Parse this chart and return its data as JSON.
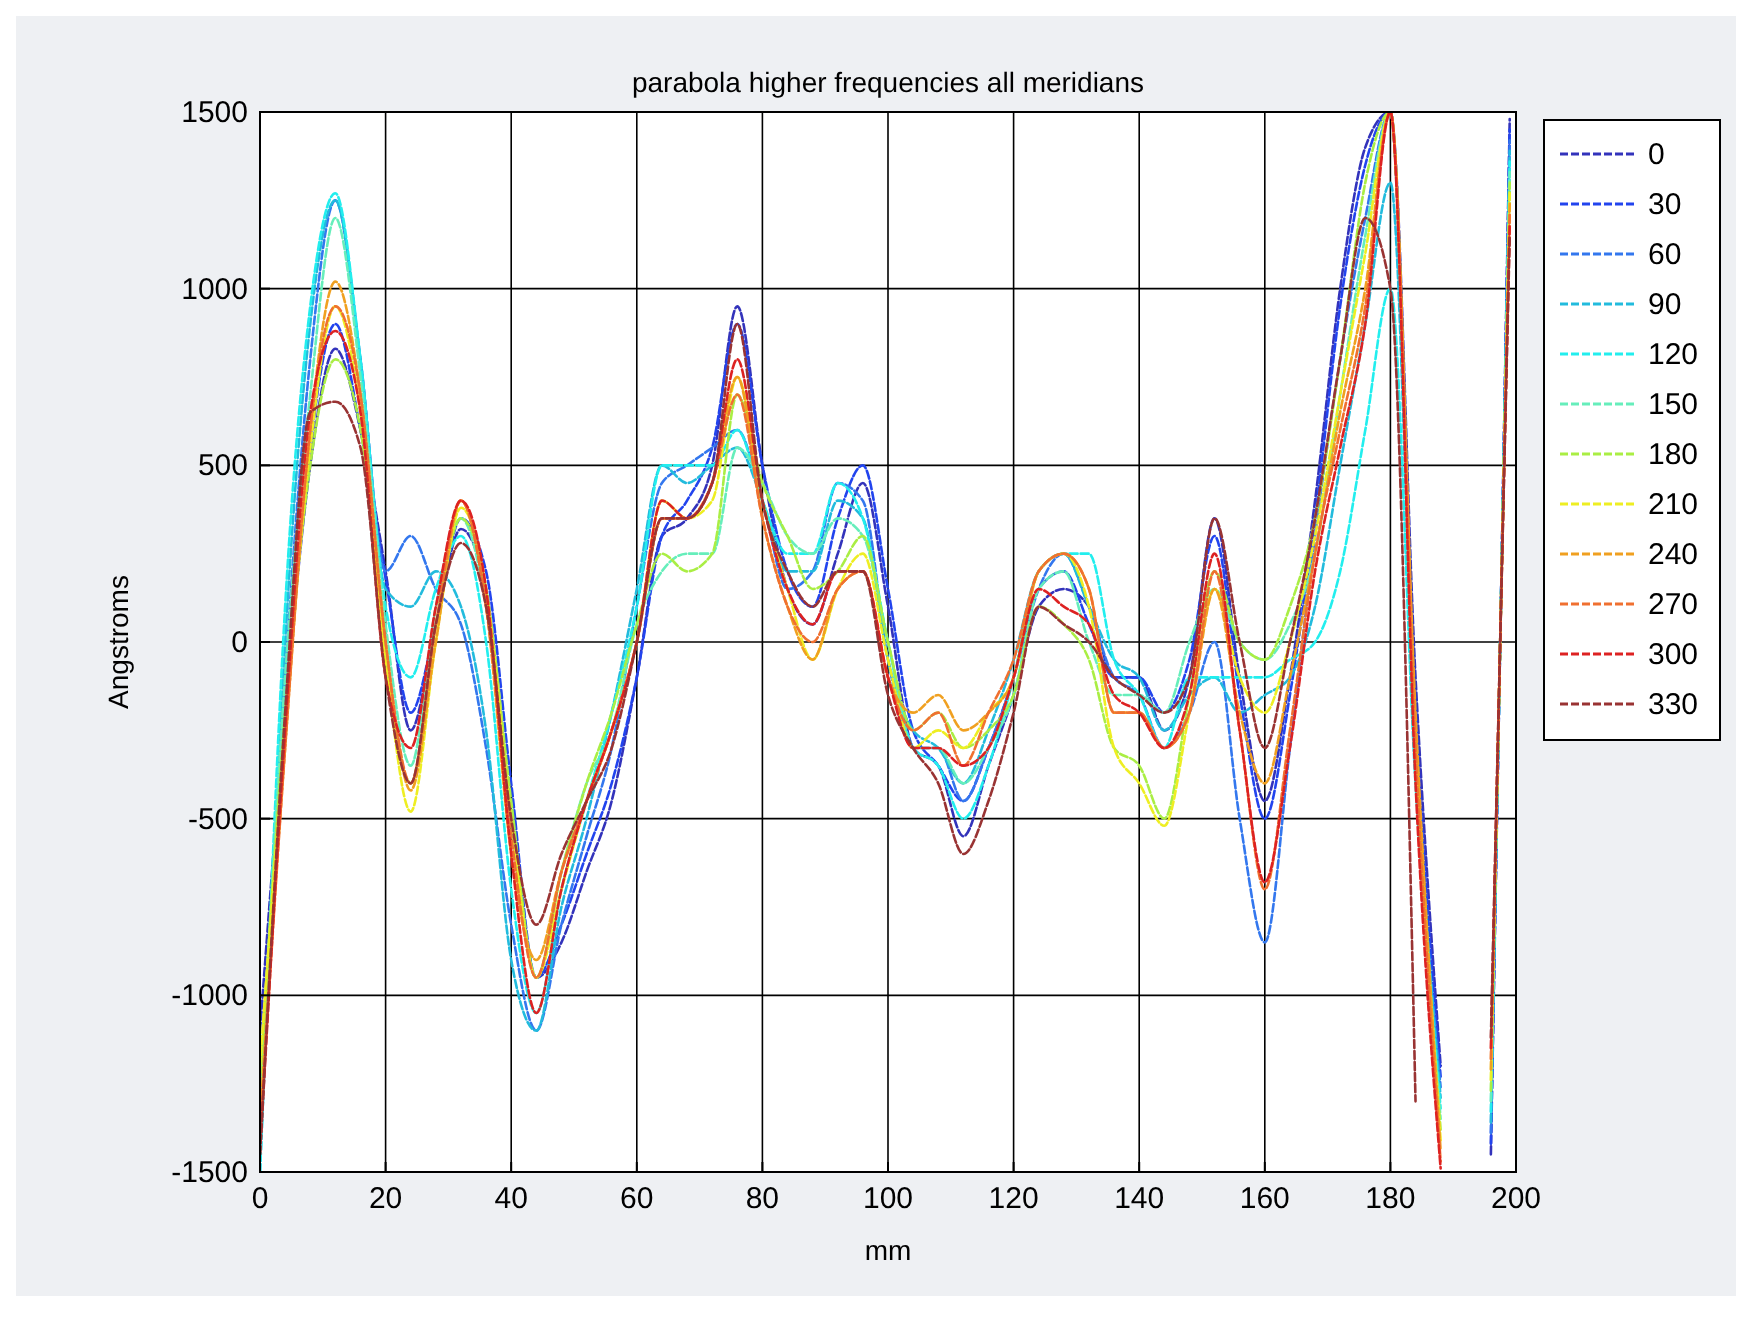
{
  "chart_data": {
    "type": "line",
    "title": "parabola higher frequencies all meridians",
    "xlabel": "mm",
    "ylabel": "Angstroms",
    "x": [
      0,
      4,
      8,
      12,
      16,
      20,
      24,
      28,
      32,
      36,
      40,
      44,
      48,
      52,
      56,
      60,
      64,
      68,
      72,
      76,
      80,
      84,
      88,
      92,
      96,
      100,
      104,
      108,
      112,
      116,
      120,
      124,
      128,
      132,
      136,
      140,
      144,
      148,
      152,
      156,
      160,
      164,
      168,
      172,
      176,
      180,
      184,
      188,
      192,
      196,
      199
    ],
    "xlim": [
      0,
      200
    ],
    "ylim": [
      -1500,
      1500
    ],
    "xticks": [
      0,
      20,
      40,
      60,
      80,
      100,
      120,
      140,
      160,
      180,
      200
    ],
    "yticks": [
      -1500,
      -1000,
      -500,
      0,
      500,
      1000,
      1500
    ],
    "grid": true,
    "legend": "right",
    "line_style": "dashed",
    "marker": "none",
    "series": [
      {
        "name": "0",
        "color": "#3333bb",
        "values": [
          -1100,
          -200,
          500,
          830,
          600,
          200,
          -250,
          50,
          320,
          150,
          -500,
          -950,
          -850,
          -650,
          -450,
          -100,
          300,
          350,
          500,
          950,
          500,
          150,
          50,
          250,
          450,
          100,
          -300,
          -350,
          -550,
          -350,
          -150,
          100,
          150,
          100,
          -100,
          -100,
          -250,
          -100,
          350,
          -100,
          -450,
          -100,
          400,
          1000,
          1400,
          1500,
          -100,
          -1200,
          null,
          -1450,
          1480
        ]
      },
      {
        "name": "30",
        "color": "#2244ee",
        "values": [
          -1230,
          -250,
          550,
          900,
          600,
          180,
          -200,
          50,
          350,
          200,
          -400,
          -950,
          -800,
          -600,
          -400,
          -100,
          300,
          400,
          550,
          900,
          500,
          200,
          100,
          350,
          500,
          150,
          -250,
          -350,
          -450,
          -300,
          -100,
          150,
          200,
          50,
          -100,
          -100,
          -200,
          -50,
          300,
          -150,
          -500,
          -150,
          350,
          950,
          1350,
          1500,
          -200,
          -1230,
          null,
          -1420,
          1450
        ]
      },
      {
        "name": "60",
        "color": "#3377ee",
        "values": [
          -1400,
          -100,
          800,
          1250,
          800,
          200,
          300,
          150,
          50,
          -300,
          -800,
          -1100,
          -800,
          -550,
          -300,
          100,
          450,
          500,
          550,
          600,
          400,
          150,
          200,
          450,
          400,
          -50,
          -300,
          -300,
          -450,
          -300,
          -100,
          150,
          250,
          100,
          -100,
          -150,
          -300,
          -200,
          0,
          -500,
          -850,
          -300,
          300,
          800,
          1200,
          1500,
          -300,
          -1260,
          null,
          -1390,
          1420
        ]
      },
      {
        "name": "90",
        "color": "#22bbdd",
        "values": [
          -1500,
          0,
          900,
          1250,
          800,
          150,
          100,
          200,
          100,
          -250,
          -900,
          -1100,
          -750,
          -500,
          -200,
          150,
          500,
          450,
          500,
          550,
          400,
          200,
          200,
          400,
          350,
          -50,
          -250,
          -300,
          -400,
          -250,
          -50,
          200,
          250,
          100,
          -50,
          -100,
          -250,
          -150,
          -100,
          -200,
          -150,
          -100,
          100,
          500,
          900,
          1300,
          -300,
          -1290,
          null,
          -1360,
          1390
        ]
      },
      {
        "name": "120",
        "color": "#22eeee",
        "values": [
          -1500,
          100,
          950,
          1270,
          800,
          100,
          -100,
          150,
          300,
          0,
          -700,
          -1050,
          -700,
          -450,
          -200,
          100,
          500,
          500,
          500,
          600,
          400,
          250,
          250,
          450,
          350,
          0,
          -300,
          -350,
          -500,
          -350,
          -100,
          200,
          250,
          250,
          -50,
          -150,
          -300,
          -100,
          -100,
          -100,
          -100,
          -50,
          0,
          200,
          600,
          1000,
          -400,
          -1320,
          null,
          -1330,
          1360
        ]
      },
      {
        "name": "150",
        "color": "#66eebb",
        "values": [
          -1300,
          -100,
          700,
          1200,
          750,
          50,
          -350,
          100,
          350,
          100,
          -500,
          -950,
          -650,
          -400,
          -250,
          50,
          200,
          250,
          250,
          550,
          450,
          300,
          250,
          350,
          300,
          0,
          -300,
          -300,
          -400,
          -300,
          -150,
          150,
          200,
          0,
          -150,
          -150,
          -200,
          0,
          150,
          0,
          -50,
          50,
          250,
          700,
          1150,
          1500,
          -300,
          -1350,
          null,
          -1300,
          1330
        ]
      },
      {
        "name": "180",
        "color": "#aaee44",
        "values": [
          -1250,
          -200,
          500,
          800,
          600,
          -50,
          -400,
          50,
          350,
          150,
          -450,
          -950,
          -650,
          -400,
          -200,
          50,
          250,
          200,
          250,
          700,
          450,
          300,
          150,
          200,
          300,
          0,
          -250,
          -200,
          -300,
          -250,
          -150,
          100,
          50,
          -50,
          -300,
          -350,
          -500,
          -150,
          200,
          0,
          -50,
          100,
          350,
          800,
          1300,
          1500,
          -300,
          -1380,
          null,
          -1270,
          1300
        ]
      },
      {
        "name": "210",
        "color": "#eeee22",
        "values": [
          -1200,
          -250,
          550,
          950,
          650,
          -50,
          -480,
          0,
          380,
          150,
          -500,
          -950,
          -700,
          -450,
          -250,
          0,
          400,
          350,
          400,
          750,
          400,
          150,
          -50,
          150,
          250,
          -50,
          -300,
          -250,
          -300,
          -200,
          -100,
          200,
          250,
          100,
          -300,
          -400,
          -520,
          -200,
          150,
          -100,
          -200,
          0,
          300,
          700,
          1100,
          1500,
          -250,
          -1410,
          null,
          -1240,
          1270
        ]
      },
      {
        "name": "240",
        "color": "#f0a020",
        "values": [
          -1350,
          -300,
          600,
          1020,
          700,
          0,
          -420,
          0,
          400,
          100,
          -600,
          -900,
          -650,
          -450,
          -250,
          0,
          350,
          350,
          450,
          750,
          350,
          100,
          -50,
          150,
          200,
          -100,
          -200,
          -150,
          -250,
          -200,
          -100,
          200,
          250,
          150,
          -200,
          -200,
          -300,
          -200,
          150,
          -200,
          -400,
          -100,
          250,
          650,
          1000,
          1500,
          -200,
          -1440,
          null,
          -1210,
          1240
        ]
      },
      {
        "name": "270",
        "color": "#f07030",
        "values": [
          -1400,
          -300,
          600,
          950,
          700,
          0,
          -400,
          50,
          400,
          100,
          -550,
          -950,
          -650,
          -450,
          -250,
          0,
          350,
          350,
          450,
          700,
          350,
          100,
          0,
          150,
          200,
          -100,
          -250,
          -200,
          -350,
          -200,
          -50,
          200,
          250,
          150,
          -200,
          -200,
          -300,
          -200,
          200,
          -250,
          -700,
          -250,
          250,
          600,
          950,
          1500,
          -300,
          -1470,
          null,
          -1180,
          1210
        ]
      },
      {
        "name": "300",
        "color": "#dd2222",
        "values": [
          -1450,
          -250,
          650,
          880,
          650,
          -100,
          -300,
          100,
          400,
          150,
          -600,
          -1050,
          -700,
          -450,
          -250,
          0,
          400,
          350,
          450,
          800,
          400,
          150,
          50,
          200,
          200,
          -100,
          -300,
          -300,
          -350,
          -300,
          -100,
          150,
          100,
          50,
          -150,
          -200,
          -300,
          -150,
          250,
          -250,
          -680,
          -300,
          200,
          550,
          900,
          1500,
          -400,
          -1490,
          null,
          -1150,
          1180
        ]
      },
      {
        "name": "330",
        "color": "#993333",
        "values": [
          -1450,
          -200,
          650,
          680,
          550,
          -100,
          -400,
          50,
          280,
          100,
          -500,
          -800,
          -600,
          -450,
          -300,
          0,
          350,
          350,
          450,
          900,
          400,
          200,
          100,
          200,
          200,
          -150,
          -300,
          -400,
          -600,
          -450,
          -200,
          100,
          50,
          0,
          -100,
          -150,
          -200,
          -100,
          350,
          0,
          -300,
          0,
          350,
          800,
          1200,
          1000,
          -1300,
          null,
          null,
          -1120,
          1150
        ]
      }
    ]
  }
}
